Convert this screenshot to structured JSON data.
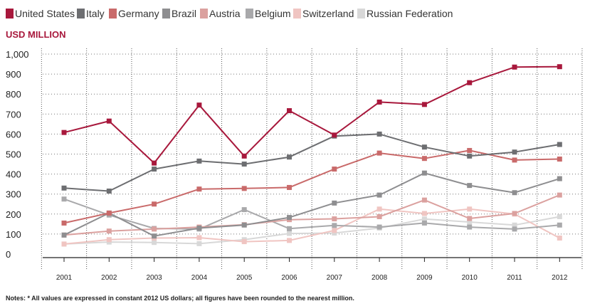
{
  "chart_data": {
    "type": "line",
    "title": "",
    "ylabel": "USD MILLION",
    "xlabel": "",
    "ylim": [
      0,
      1000
    ],
    "yticks": [
      {
        "value": 0,
        "label": "0"
      },
      {
        "value": 100,
        "label": "100"
      },
      {
        "value": 200,
        "label": "200"
      },
      {
        "value": 300,
        "label": "300"
      },
      {
        "value": 400,
        "label": "400"
      },
      {
        "value": 500,
        "label": "500"
      },
      {
        "value": 600,
        "label": "600"
      },
      {
        "value": 700,
        "label": "700"
      },
      {
        "value": 800,
        "label": "800"
      },
      {
        "value": 900,
        "label": "900"
      },
      {
        "value": 1000,
        "label": "1,000"
      }
    ],
    "categories": [
      "2001",
      "2002",
      "2003",
      "2004",
      "2005",
      "2006",
      "2007",
      "2008",
      "2009",
      "2010",
      "2011",
      "2012"
    ],
    "legend_position": "top",
    "series": [
      {
        "name": "United States",
        "color": "#a8183c",
        "values": [
          608,
          665,
          455,
          745,
          490,
          717,
          595,
          760,
          748,
          857,
          935,
          937
        ]
      },
      {
        "name": "Italy",
        "color": "#6d6e71",
        "values": [
          330,
          315,
          425,
          465,
          450,
          485,
          590,
          600,
          535,
          490,
          510,
          548
        ]
      },
      {
        "name": "Germany",
        "color": "#c96a6a",
        "values": [
          155,
          205,
          250,
          325,
          328,
          333,
          425,
          505,
          478,
          518,
          470,
          475
        ]
      },
      {
        "name": "Brazil",
        "color": "#8e8e90",
        "values": [
          95,
          205,
          90,
          130,
          145,
          183,
          255,
          295,
          405,
          343,
          307,
          377
        ]
      },
      {
        "name": "Austria",
        "color": "#dba19f",
        "values": [
          95,
          115,
          125,
          135,
          147,
          172,
          176,
          187,
          270,
          178,
          203,
          295
        ]
      },
      {
        "name": "Belgium",
        "color": "#a9a9ab",
        "values": [
          275,
          195,
          128,
          125,
          222,
          127,
          143,
          135,
          155,
          135,
          125,
          145
        ]
      },
      {
        "name": "Switzerland",
        "color": "#f0c5c2",
        "values": [
          50,
          72,
          80,
          82,
          62,
          68,
          118,
          225,
          203,
          225,
          200,
          80
        ]
      },
      {
        "name": "Russian Federation",
        "color": "#d8d8d8",
        "values": [
          50,
          60,
          58,
          52,
          72,
          103,
          105,
          130,
          175,
          160,
          145,
          187
        ]
      }
    ]
  },
  "notes": "Notes: * All values are expressed in constant 2012 US dollars; all figures have been rounded to the nearest million."
}
